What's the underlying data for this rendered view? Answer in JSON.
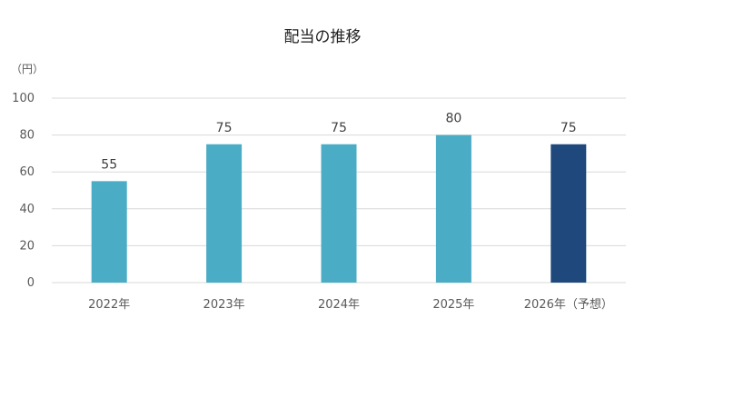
{
  "chart_data": {
    "type": "bar",
    "title": "配当の推移",
    "ylabel": "（円）",
    "xlabel": "",
    "categories": [
      "2022年",
      "2023年",
      "2024年",
      "2025年",
      "2026年（予想）"
    ],
    "values": [
      55,
      75,
      75,
      80,
      75
    ],
    "ylim": [
      0,
      100
    ],
    "yticks": [
      0,
      20,
      40,
      60,
      80,
      100
    ],
    "grid": true,
    "legend": "none",
    "colors": {
      "actual": "#4aacc5",
      "forecast": "#1f497d",
      "gridline": "#d9d9d9"
    },
    "forecast_index": 4
  }
}
